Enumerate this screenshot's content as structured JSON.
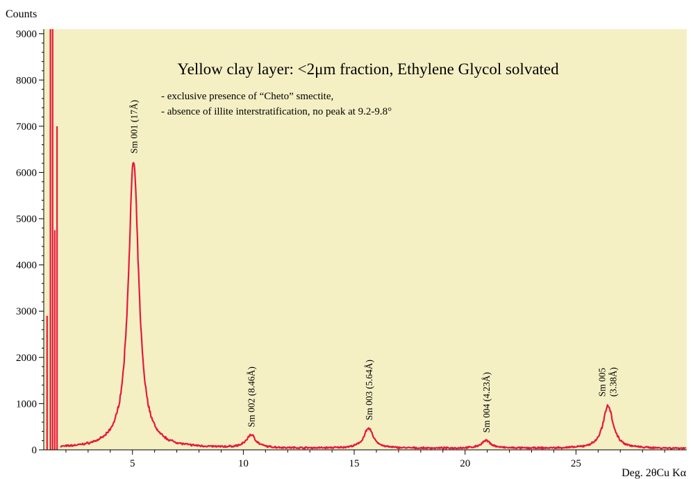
{
  "chart_data": {
    "type": "line",
    "title": "Yellow clay layer: <2μm fraction, Ethylene Glycol solvated",
    "notes": [
      "- exclusive presence of “Cheto” smectite,",
      "- absence of illite interstratification, no peak at 9.2-9.8°"
    ],
    "ylabel": "Counts",
    "xlabel": "Deg. 2θCu Kα",
    "xlim": [
      1.0,
      30.0
    ],
    "ylim": [
      0,
      9100
    ],
    "xticks": [
      5,
      10,
      15,
      20,
      25
    ],
    "xtick_labels": [
      "5",
      "10",
      "15",
      "20",
      "25"
    ],
    "yticks": [
      0,
      1000,
      2000,
      3000,
      4000,
      5000,
      6000,
      7000,
      8000,
      9000
    ],
    "ytick_labels": [
      "0",
      "1000",
      "2000",
      "3000",
      "4000",
      "5000",
      "6000",
      "7000",
      "8000",
      "9000"
    ],
    "background": "#f5f0c4",
    "line_color": "#e8173a",
    "grid": false,
    "low_angle_lines": [
      {
        "x": 1.15,
        "y": 2900
      },
      {
        "x": 1.3,
        "y": 9100
      },
      {
        "x": 1.4,
        "y": 9100
      },
      {
        "x": 1.5,
        "y": 4750
      },
      {
        "x": 1.6,
        "y": 7000
      }
    ],
    "peaks": [
      {
        "name": "Sm 001",
        "d_spacing": "(17Å)",
        "label": "Sm 001 (17Å)",
        "x": 5.05,
        "y": 6200,
        "width": 0.42
      },
      {
        "name": "Sm 002",
        "d_spacing": "(8.46Å)",
        "label": "Sm 002 (8.46Å)",
        "x": 10.35,
        "y": 280,
        "width": 0.38
      },
      {
        "name": "Sm 003",
        "d_spacing": "(5.64Å)",
        "label": "Sm 003 (5.64Å)",
        "x": 15.65,
        "y": 430,
        "width": 0.38
      },
      {
        "name": "Sm 004",
        "d_spacing": "(4.23Å)",
        "label": "Sm 004 (4.23Å)",
        "x": 20.95,
        "y": 160,
        "width": 0.4
      },
      {
        "name": "Sm 005",
        "d_spacing": "(3.38Å)",
        "label": "Sm 005 (3.38Å)",
        "x": 26.45,
        "y": 940,
        "width": 0.4
      }
    ],
    "background_counts": 30
  }
}
